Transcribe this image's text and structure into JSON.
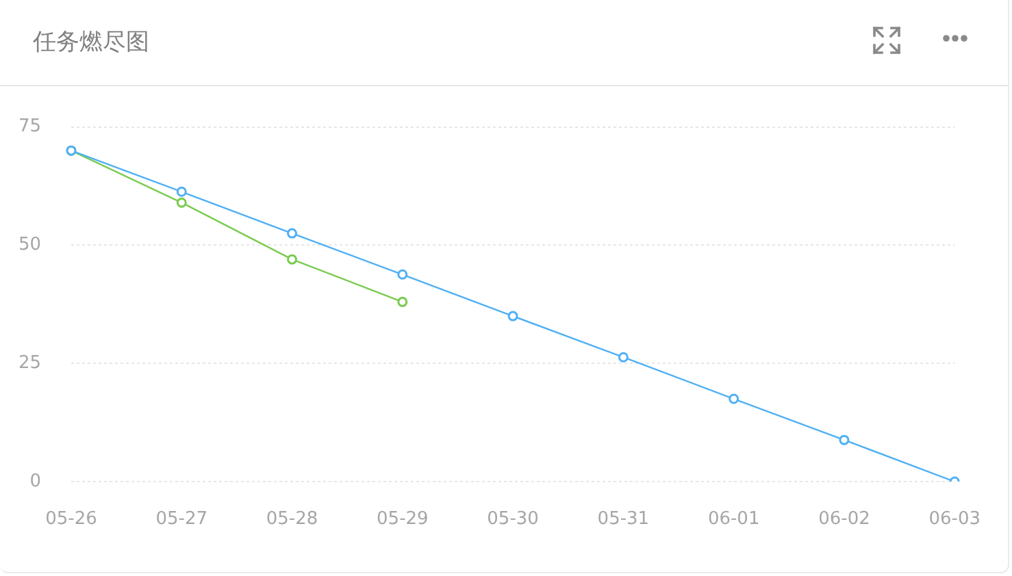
{
  "chart_data": {
    "type": "line",
    "title": "任务燃尽图",
    "categories": [
      "05-26",
      "05-27",
      "05-28",
      "05-29",
      "05-30",
      "05-31",
      "06-01",
      "06-02",
      "06-03"
    ],
    "series": [
      {
        "color": "#4fb0f5",
        "values": [
          70,
          61.3,
          52.5,
          43.8,
          35,
          26.3,
          17.5,
          8.8,
          0
        ]
      },
      {
        "color": "#7acb4f",
        "values": [
          70,
          59,
          47,
          38,
          null,
          null,
          null,
          null,
          null
        ]
      }
    ],
    "ylim": [
      0,
      75
    ],
    "yticks": [
      0,
      25,
      50,
      75
    ],
    "grid": "y",
    "marker": "circle",
    "line_style": "solid"
  }
}
